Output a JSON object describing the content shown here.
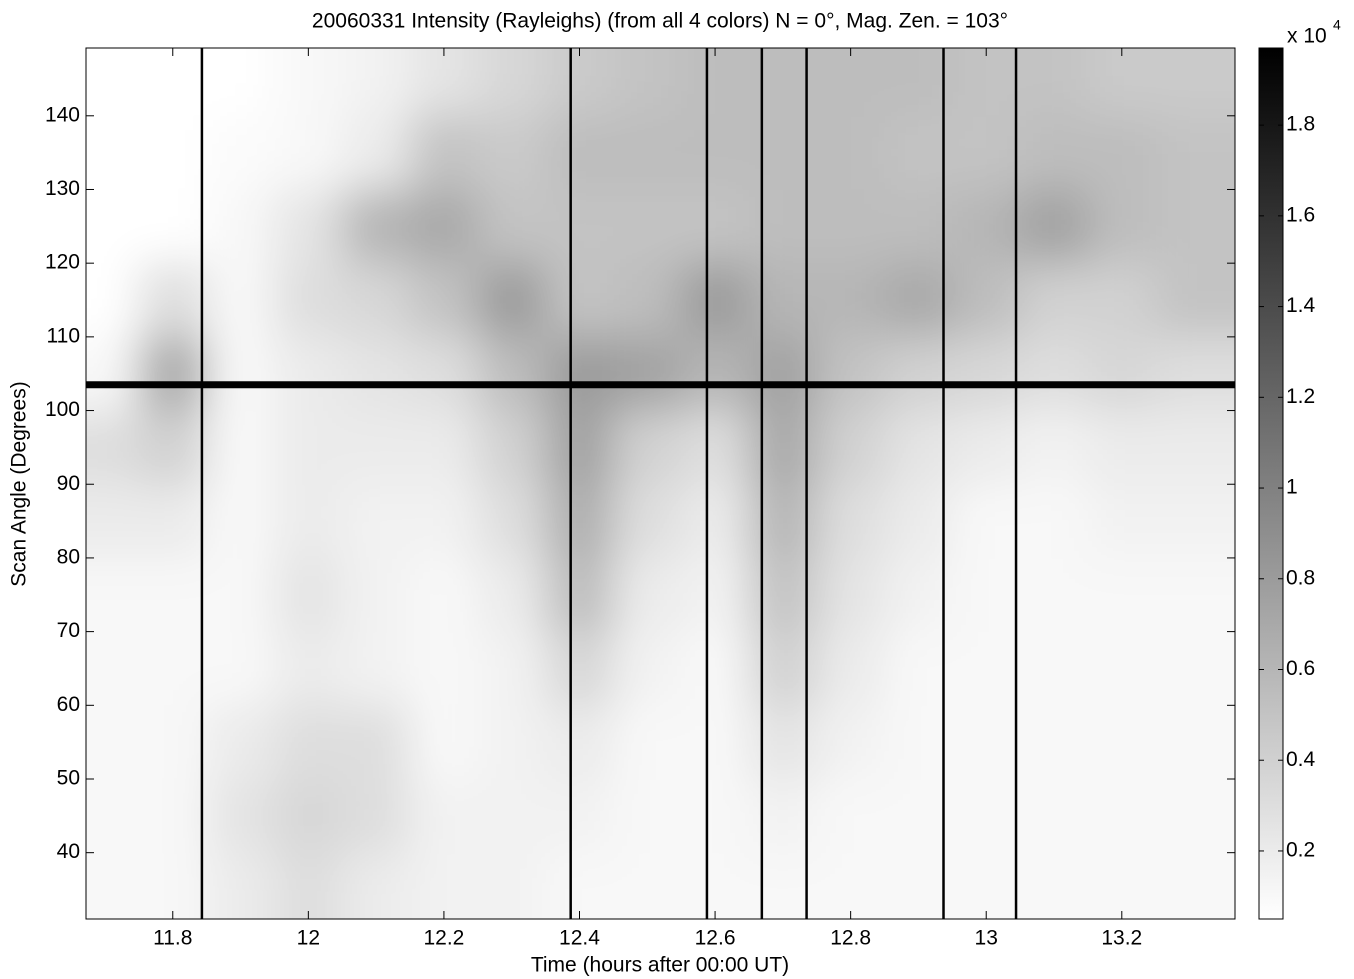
{
  "chart_data": {
    "type": "heatmap",
    "title": "20060331 Intensity (Rayleighs) (from all 4 colors) N = 0°, Mag. Zen. = 103°",
    "x_label": "Time (hours after 00:00 UT)",
    "y_label": "Scan Angle (Degrees)",
    "xlim": [
      11.672,
      13.367
    ],
    "ylim": [
      31,
      149.2
    ],
    "xticks": [
      11.8,
      12,
      12.2,
      12.4,
      12.6,
      12.8,
      13,
      13.2
    ],
    "yticks": [
      40,
      50,
      60,
      70,
      80,
      90,
      100,
      110,
      120,
      130,
      140
    ],
    "x": [
      11.7,
      11.8,
      11.9,
      12.0,
      12.1,
      12.2,
      12.3,
      12.4,
      12.5,
      12.6,
      12.7,
      12.8,
      12.9,
      13.0,
      13.1,
      13.2,
      13.3
    ],
    "y": [
      145,
      135,
      125,
      115,
      105,
      95,
      85,
      75,
      65,
      55,
      45,
      35
    ],
    "z": [
      [
        0.05,
        0.05,
        0.05,
        0.1,
        0.15,
        0.25,
        0.35,
        0.45,
        0.5,
        0.55,
        0.55,
        0.55,
        0.55,
        0.5,
        0.5,
        0.45,
        0.45
      ],
      [
        0.05,
        0.05,
        0.08,
        0.1,
        0.2,
        0.5,
        0.45,
        0.55,
        0.55,
        0.55,
        0.55,
        0.55,
        0.5,
        0.5,
        0.55,
        0.55,
        0.5
      ],
      [
        0.05,
        0.05,
        0.1,
        0.25,
        0.6,
        0.7,
        0.5,
        0.5,
        0.5,
        0.5,
        0.55,
        0.55,
        0.55,
        0.6,
        0.75,
        0.55,
        0.5
      ],
      [
        0.05,
        0.3,
        0.1,
        0.3,
        0.35,
        0.5,
        0.8,
        0.5,
        0.55,
        0.8,
        0.6,
        0.6,
        0.7,
        0.55,
        0.4,
        0.4,
        0.5
      ],
      [
        0.1,
        0.7,
        0.1,
        0.2,
        0.25,
        0.3,
        0.55,
        0.8,
        0.75,
        0.6,
        0.75,
        0.5,
        0.4,
        0.35,
        0.3,
        0.35,
        0.3
      ],
      [
        0.3,
        0.4,
        0.1,
        0.2,
        0.2,
        0.2,
        0.4,
        0.75,
        0.4,
        0.3,
        0.7,
        0.4,
        0.25,
        0.2,
        0.15,
        0.2,
        0.2
      ],
      [
        0.2,
        0.2,
        0.1,
        0.2,
        0.15,
        0.15,
        0.3,
        0.65,
        0.3,
        0.2,
        0.6,
        0.3,
        0.2,
        0.1,
        0.1,
        0.15,
        0.15
      ],
      [
        0.1,
        0.1,
        0.1,
        0.25,
        0.15,
        0.1,
        0.2,
        0.55,
        0.2,
        0.15,
        0.5,
        0.25,
        0.15,
        0.1,
        0.1,
        0.1,
        0.1
      ],
      [
        0.1,
        0.1,
        0.1,
        0.2,
        0.15,
        0.1,
        0.15,
        0.35,
        0.15,
        0.1,
        0.4,
        0.2,
        0.1,
        0.1,
        0.1,
        0.1,
        0.1
      ],
      [
        0.1,
        0.1,
        0.2,
        0.3,
        0.3,
        0.1,
        0.15,
        0.2,
        0.1,
        0.1,
        0.25,
        0.15,
        0.1,
        0.1,
        0.1,
        0.1,
        0.1
      ],
      [
        0.1,
        0.1,
        0.25,
        0.35,
        0.3,
        0.15,
        0.15,
        0.15,
        0.1,
        0.1,
        0.15,
        0.1,
        0.1,
        0.1,
        0.1,
        0.1,
        0.1
      ],
      [
        0.1,
        0.1,
        0.2,
        0.3,
        0.2,
        0.15,
        0.15,
        0.1,
        0.1,
        0.1,
        0.1,
        0.1,
        0.1,
        0.1,
        0.1,
        0.1,
        0.1
      ]
    ],
    "clim": [
      0.05,
      1.97
    ],
    "colorbar_ticks": [
      0.2,
      0.4,
      0.6,
      0.8,
      1,
      1.2,
      1.4,
      1.6,
      1.8
    ],
    "colorbar_multiplier": "x 10",
    "colorbar_exponent": 4,
    "markers_x": [
      11.843,
      12.387,
      12.588,
      12.669,
      12.735,
      12.937,
      13.044
    ],
    "markers_y": [
      103.5
    ],
    "colormap": "gray"
  }
}
